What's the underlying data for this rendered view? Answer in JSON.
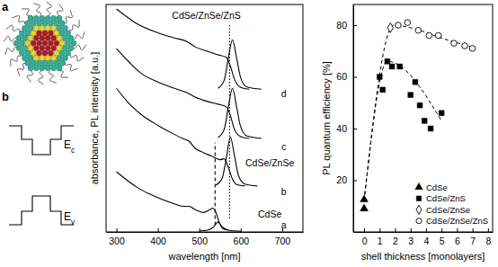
{
  "schematic": {
    "panel_label": "a"
  },
  "band_diagram": {
    "panel_label": "b",
    "levels": [
      {
        "symbol": "E",
        "subscript": "c"
      },
      {
        "symbol": "E",
        "subscript": "v"
      }
    ]
  },
  "chart_data": [
    {
      "type": "line",
      "x_label": "wavelength [nm]",
      "y_label": "absorbance, PL intensity [a.u.]",
      "xlim": [
        275,
        750
      ],
      "xticks": [
        300,
        400,
        500,
        600,
        700
      ],
      "ylim": [
        0,
        102
      ],
      "tick_labels": "x",
      "series": [
        {
          "x": [
            300,
            320,
            350,
            380,
            410,
            440,
            460,
            475,
            490,
            510,
            525,
            533,
            540,
            548,
            556,
            570
          ],
          "values": [
            27,
            24,
            20,
            17,
            14.6,
            12.6,
            11.5,
            11.5,
            10,
            8.7,
            10,
            10.7,
            8.7,
            4.3,
            1.6,
            0.8
          ],
          "color": "#000000",
          "line_style": "solid"
        },
        {
          "x": [
            500,
            520,
            535,
            545,
            555,
            570,
            600
          ],
          "values": [
            0.4,
            0.8,
            2.4,
            4.5,
            2.4,
            0.8,
            0.3
          ],
          "color": "#000000",
          "line_style": "solid"
        },
        {
          "x": [
            300,
            330,
            360,
            400,
            430,
            460,
            475,
            490,
            510,
            530,
            550,
            560,
            570,
            580,
            590,
            610
          ],
          "values": [
            64.4,
            57.7,
            52.6,
            47.8,
            44.7,
            41.9,
            40.7,
            37.5,
            35.6,
            34,
            32.4,
            32.8,
            28.9,
            23.7,
            21.3,
            20.6
          ],
          "color": "#000000",
          "line_style": "solid"
        },
        {
          "x": [
            540,
            555,
            565,
            575,
            585,
            595,
            610,
            640
          ],
          "values": [
            21,
            24,
            33,
            42.5,
            34,
            25,
            21.5,
            20.6
          ],
          "color": "#000000",
          "line_style": "solid"
        },
        {
          "x": [
            300,
            330,
            360,
            400,
            440,
            470,
            490,
            520,
            545,
            565,
            575,
            585,
            600,
            620
          ],
          "values": [
            82.2,
            76.3,
            71.1,
            67.2,
            64.4,
            62.5,
            60.5,
            58.5,
            57.3,
            56.1,
            52.2,
            45.8,
            42.7,
            41.9
          ],
          "color": "#000000",
          "line_style": "solid"
        },
        {
          "x": [
            545,
            560,
            570,
            580,
            590,
            600,
            615,
            650
          ],
          "values": [
            42.3,
            46,
            56,
            64.4,
            56,
            47,
            43,
            41.9
          ],
          "color": "#000000",
          "line_style": "solid"
        },
        {
          "x": [
            300,
            320,
            350,
            400,
            440,
            470,
            490,
            520,
            545,
            565,
            575,
            585,
            600,
            620
          ],
          "values": [
            100,
            97.2,
            93.3,
            89.3,
            87,
            85.4,
            83,
            81,
            79.4,
            78.3,
            74.3,
            68.4,
            64.8,
            64
          ],
          "color": "#000000",
          "line_style": "solid"
        },
        {
          "x": [
            545,
            560,
            570,
            580,
            590,
            600,
            615,
            650
          ],
          "values": [
            64.4,
            68,
            78,
            86.2,
            78,
            69,
            65,
            64
          ],
          "color": "#000000",
          "line_style": "solid"
        },
        {
          "x": [
            538,
            538
          ],
          "values": [
            3,
            40
          ],
          "color": "#000000",
          "line_style": "dashed"
        },
        {
          "x": [
            573,
            573
          ],
          "values": [
            6,
            93
          ],
          "color": "#000000",
          "line_style": "dotted"
        }
      ],
      "annotations": [
        {
          "text": "CdSe/ZnSe/ZnS",
          "x": 517,
          "y": 97
        },
        {
          "text": "d",
          "x": 704,
          "y": 62
        },
        {
          "text": "c",
          "x": 704,
          "y": 38
        },
        {
          "text": "CdSe/ZnSe",
          "x": 670,
          "y": 31
        },
        {
          "text": "b",
          "x": 704,
          "y": 18
        },
        {
          "text": "CdSe",
          "x": 670,
          "y": 8
        },
        {
          "text": "a",
          "x": 704,
          "y": 3
        }
      ]
    },
    {
      "type": "scatter",
      "x_label": "shell thickness [monolayers]",
      "y_label": "PL quantum efficiency [%]",
      "xlim": [
        -0.7,
        8.3
      ],
      "xticks": [
        0,
        1,
        2,
        3,
        4,
        5,
        6,
        7,
        8
      ],
      "ylim": [
        0,
        88
      ],
      "yticks": [
        20,
        40,
        60,
        80
      ],
      "legend": "lower right",
      "series": [
        {
          "name": "CdSe",
          "marker": "triangle",
          "color": "#000000",
          "x": [
            0,
            0
          ],
          "values": [
            9,
            12.5
          ]
        },
        {
          "name": "CdSe/ZnS",
          "marker": "square",
          "color": "#000000",
          "x": [
            1.0,
            1.2,
            1.5,
            1.8,
            2.3,
            3.0,
            3.3,
            3.6,
            3.9,
            4.3,
            5.0
          ],
          "values": [
            60,
            55,
            66,
            64,
            64,
            53,
            58,
            49,
            43,
            40,
            46
          ]
        },
        {
          "name": "CdSe/ZnSe",
          "marker": "open-diamond",
          "color": "#000000",
          "x": [
            1.7
          ],
          "values": [
            79
          ]
        },
        {
          "name": "CdSe/ZnSe/ZnS",
          "marker": "open-circle",
          "color": "#000000",
          "x": [
            2.2,
            2.8,
            3.5,
            4.2,
            4.8,
            5.8,
            6.5,
            7.0
          ],
          "values": [
            80,
            81,
            78,
            76,
            76,
            73,
            72,
            71
          ]
        }
      ],
      "fit_lines": [
        {
          "x": [
            0,
            1.5,
            5
          ],
          "values": [
            12,
            66,
            43
          ],
          "line_style": "dashed"
        },
        {
          "x": [
            0,
            1.9,
            3,
            5,
            7
          ],
          "values": [
            12,
            80,
            79,
            75,
            71.5
          ],
          "line_style": "dashed"
        }
      ]
    }
  ]
}
